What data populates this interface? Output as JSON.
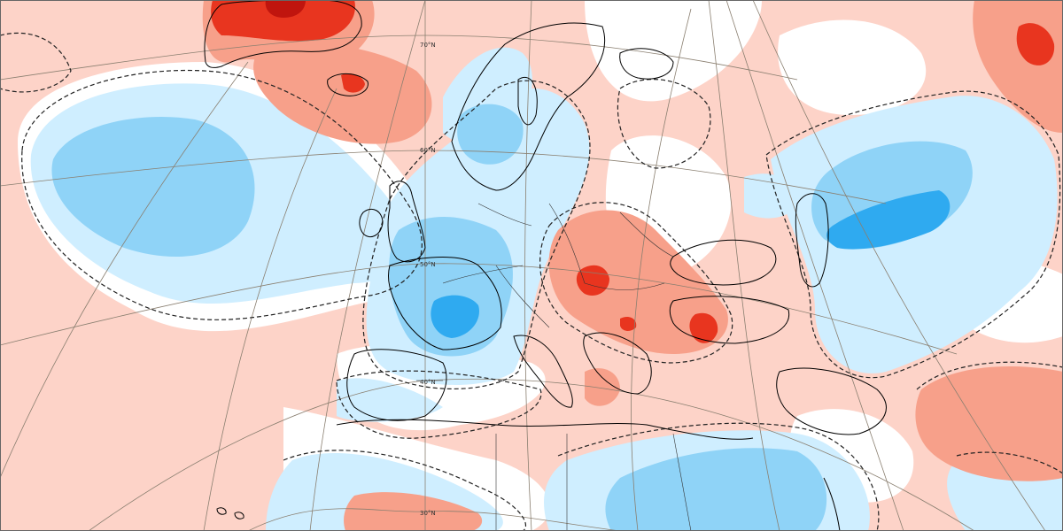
{
  "map": {
    "latitude_labels": [
      {
        "id": "lat-70n",
        "text": "70°N"
      },
      {
        "id": "lat-60n",
        "text": "60°N"
      },
      {
        "id": "lat-50n",
        "text": "50°N"
      },
      {
        "id": "lat-40n",
        "text": "40°N"
      },
      {
        "id": "lat-30n",
        "text": "30°N"
      }
    ],
    "colors": {
      "strong_positive": "#e8351f",
      "very_strong_positive": "#c0150e",
      "positive": "#f7a08a",
      "weak_positive": "#fdd3c8",
      "neutral": "#ffffff",
      "weak_negative": "#cfeeff",
      "negative": "#8fd3f7",
      "strong_negative": "#2faaf0",
      "coastline": "#000000",
      "graticule": "#8a7f70",
      "zero_contour": "#222222"
    }
  }
}
